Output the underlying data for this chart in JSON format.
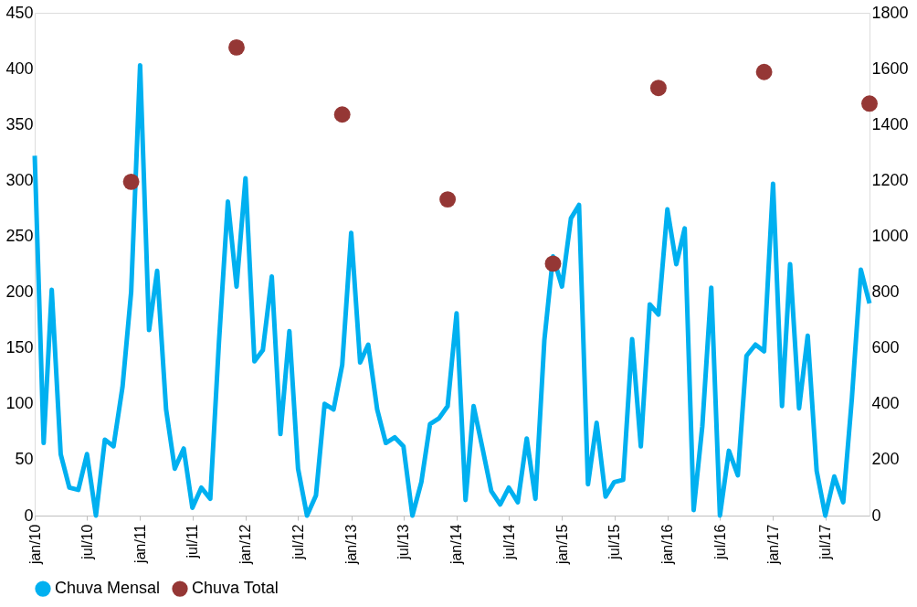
{
  "chart_data": {
    "type": "line",
    "x": [
      "2010-01",
      "2010-02",
      "2010-03",
      "2010-04",
      "2010-05",
      "2010-06",
      "2010-07",
      "2010-08",
      "2010-09",
      "2010-10",
      "2010-11",
      "2010-12",
      "2011-01",
      "2011-02",
      "2011-03",
      "2011-04",
      "2011-05",
      "2011-06",
      "2011-07",
      "2011-08",
      "2011-09",
      "2011-10",
      "2011-11",
      "2011-12",
      "2012-01",
      "2012-02",
      "2012-03",
      "2012-04",
      "2012-05",
      "2012-06",
      "2012-07",
      "2012-08",
      "2012-09",
      "2012-10",
      "2012-11",
      "2012-12",
      "2013-01",
      "2013-02",
      "2013-03",
      "2013-04",
      "2013-05",
      "2013-06",
      "2013-07",
      "2013-08",
      "2013-09",
      "2013-10",
      "2013-11",
      "2013-12",
      "2014-01",
      "2014-02",
      "2014-03",
      "2014-04",
      "2014-05",
      "2014-06",
      "2014-07",
      "2014-08",
      "2014-09",
      "2014-10",
      "2014-11",
      "2014-12",
      "2015-01",
      "2015-02",
      "2015-03",
      "2015-04",
      "2015-05",
      "2015-06",
      "2015-07",
      "2015-08",
      "2015-09",
      "2015-10",
      "2015-11",
      "2015-12",
      "2016-01",
      "2016-02",
      "2016-03",
      "2016-04",
      "2016-05",
      "2016-06",
      "2016-07",
      "2016-08",
      "2016-09",
      "2016-10",
      "2016-11",
      "2016-12",
      "2017-01",
      "2017-02",
      "2017-03",
      "2017-04",
      "2017-05",
      "2017-06",
      "2017-07",
      "2017-08",
      "2017-09",
      "2017-10",
      "2017-11",
      "2017-12"
    ],
    "series": [
      {
        "name": "Chuva Mensal",
        "color": "#00b0f0",
        "marker": "none",
        "values": [
          322,
          65,
          202,
          55,
          25,
          23,
          55,
          0,
          68,
          62,
          115,
          200,
          403,
          166,
          219,
          95,
          42,
          60,
          7,
          25,
          15,
          155,
          281,
          205,
          302,
          138,
          148,
          214,
          73,
          165,
          42,
          0,
          18,
          100,
          95,
          135,
          253,
          137,
          153,
          95,
          65,
          70,
          62,
          0,
          30,
          82,
          87,
          98,
          181,
          14,
          98,
          60,
          22,
          10,
          25,
          12,
          69,
          15,
          157,
          232,
          205,
          266,
          278,
          28,
          83,
          17,
          30,
          32,
          158,
          62,
          189,
          180,
          274,
          225,
          257,
          5,
          80,
          204,
          0,
          58,
          36,
          143,
          153,
          147,
          297,
          98,
          225,
          96,
          161,
          40,
          0,
          35,
          12,
          105,
          220,
          190
        ]
      },
      {
        "name": "Chuva Total",
        "color": "#953735",
        "type": "scatter",
        "marker": "circle",
        "axis": "y2",
        "x": [
          "2010-12",
          "2011-12",
          "2012-12",
          "2013-12",
          "2014-12",
          "2015-12",
          "2016-12",
          "2017-12"
        ],
        "values": [
          1195,
          1676,
          1436,
          1132,
          902,
          1531,
          1588,
          1475
        ]
      }
    ],
    "xlim": [
      "2010-01",
      "2017-12"
    ],
    "xticks": [
      {
        "value": "2010-01",
        "label": "jan/10"
      },
      {
        "value": "2010-07",
        "label": "jul/10"
      },
      {
        "value": "2011-01",
        "label": "jan/11"
      },
      {
        "value": "2011-07",
        "label": "jul/11"
      },
      {
        "value": "2012-01",
        "label": "jan/12"
      },
      {
        "value": "2012-07",
        "label": "jul/12"
      },
      {
        "value": "2013-01",
        "label": "jan/13"
      },
      {
        "value": "2013-07",
        "label": "jul/13"
      },
      {
        "value": "2014-01",
        "label": "jan/14"
      },
      {
        "value": "2014-07",
        "label": "jul/14"
      },
      {
        "value": "2015-01",
        "label": "jan/15"
      },
      {
        "value": "2015-07",
        "label": "jul/15"
      },
      {
        "value": "2016-01",
        "label": "jan/16"
      },
      {
        "value": "2016-07",
        "label": "jul/16"
      },
      {
        "value": "2017-01",
        "label": "jan/17"
      },
      {
        "value": "2017-07",
        "label": "jul/17"
      }
    ],
    "ylim": [
      0,
      450
    ],
    "yticks": [
      0,
      50,
      100,
      150,
      200,
      250,
      300,
      350,
      400,
      450
    ],
    "y2lim": [
      0,
      1800
    ],
    "y2ticks": [
      0,
      200,
      400,
      600,
      800,
      1000,
      1200,
      1400,
      1600,
      1800
    ],
    "legend": "bottom",
    "grid": false,
    "line_style": "solid"
  }
}
